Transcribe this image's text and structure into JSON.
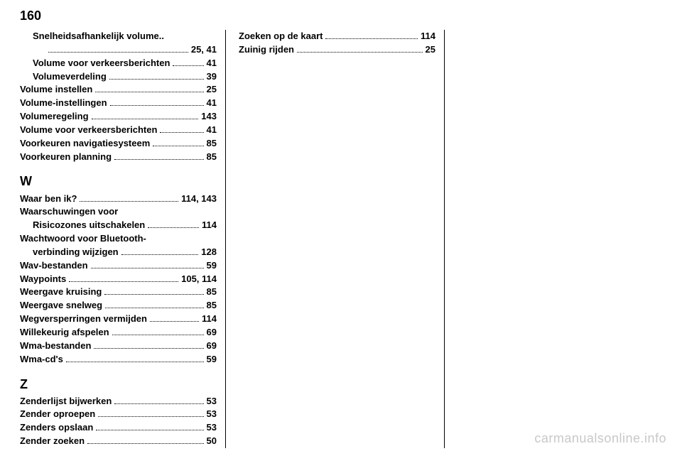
{
  "page_number": "160",
  "watermark": "carmanualsonline.info",
  "col1": {
    "entries_top": [
      {
        "label": "Snelheidsafhankelijk volume..",
        "page": "",
        "indent": 1,
        "nodots": true
      },
      {
        "label": "",
        "page": "25, 41",
        "indent": 2
      },
      {
        "label": "Volume voor verkeersberichten",
        "page": "41",
        "indent": 1
      },
      {
        "label": "Volumeverdeling",
        "page": "39",
        "indent": 1
      },
      {
        "label": "Volume instellen",
        "page": "25",
        "indent": 0
      },
      {
        "label": "Volume-instellingen",
        "page": "41",
        "indent": 0
      },
      {
        "label": "Volumeregeling",
        "page": "143",
        "indent": 0
      },
      {
        "label": "Volume voor verkeersberichten",
        "page": "41",
        "indent": 0
      },
      {
        "label": "Voorkeuren navigatiesysteem",
        "page": "85",
        "indent": 0
      },
      {
        "label": "Voorkeuren planning",
        "page": "85",
        "indent": 0
      }
    ],
    "section_w": "W",
    "entries_w": [
      {
        "label": "Waar ben ik?",
        "page": "114, 143",
        "indent": 0
      },
      {
        "label": "Waarschuwingen voor",
        "page": "",
        "indent": 0,
        "nodots": true
      },
      {
        "label": "Risicozones uitschakelen",
        "page": "114",
        "indent": 1
      },
      {
        "label": "Wachtwoord voor Bluetooth-",
        "page": "",
        "indent": 0,
        "nodots": true
      },
      {
        "label": "verbinding wijzigen",
        "page": "128",
        "indent": 1
      },
      {
        "label": "Wav-bestanden",
        "page": "59",
        "indent": 0
      },
      {
        "label": "Waypoints",
        "page": "105, 114",
        "indent": 0
      },
      {
        "label": "Weergave kruising",
        "page": "85",
        "indent": 0
      },
      {
        "label": "Weergave snelweg",
        "page": "85",
        "indent": 0
      },
      {
        "label": "Wegversperringen vermijden",
        "page": "114",
        "indent": 0
      },
      {
        "label": "Willekeurig afspelen",
        "page": "69",
        "indent": 0
      },
      {
        "label": "Wma-bestanden",
        "page": "69",
        "indent": 0
      },
      {
        "label": "Wma-cd's",
        "page": "59",
        "indent": 0
      }
    ],
    "section_z": "Z",
    "entries_z": [
      {
        "label": "Zenderlijst bijwerken",
        "page": "53",
        "indent": 0
      },
      {
        "label": "Zender oproepen",
        "page": "53",
        "indent": 0
      },
      {
        "label": "Zenders opslaan",
        "page": "53",
        "indent": 0
      },
      {
        "label": "Zender zoeken",
        "page": "50",
        "indent": 0
      }
    ]
  },
  "col2": {
    "entries": [
      {
        "label": "Zoeken op de kaart",
        "page": "114",
        "indent": 0
      },
      {
        "label": "Zuinig rijden",
        "page": "25",
        "indent": 0
      }
    ]
  }
}
